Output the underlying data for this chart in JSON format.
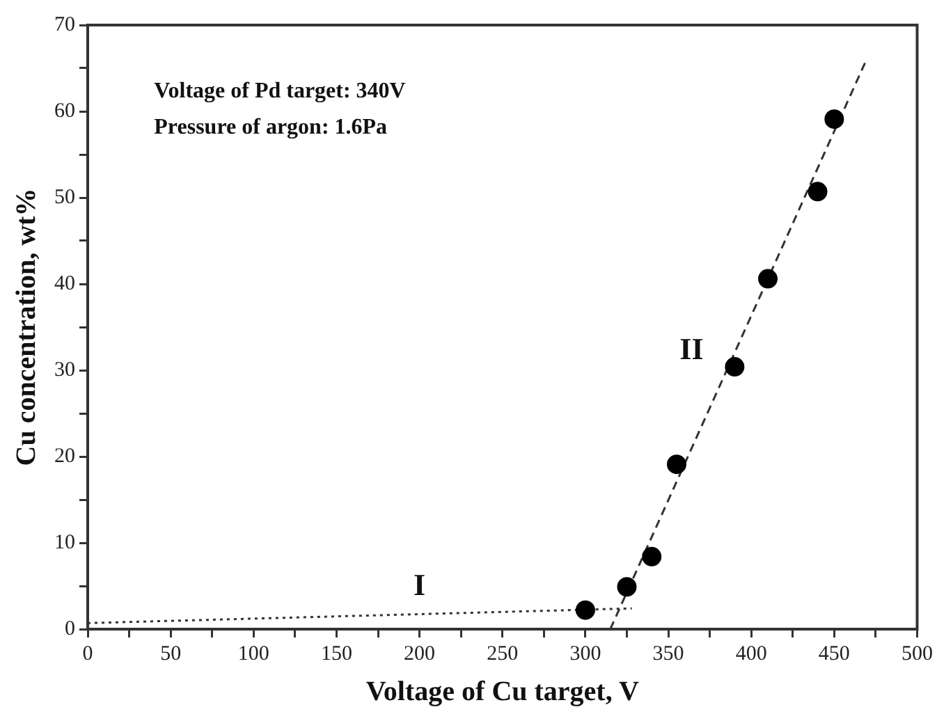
{
  "chart_data": {
    "type": "scatter",
    "xlabel": "Voltage of Cu target, V",
    "ylabel": "Cu concentration, wt%",
    "xlim": [
      0,
      500
    ],
    "ylim": [
      0,
      70
    ],
    "xticks": [
      0,
      {
        "value": 25,
        "label": null
      },
      50,
      {
        "value": 75,
        "label": null
      },
      100,
      {
        "value": 125,
        "label": null
      },
      150,
      {
        "value": 175,
        "label": null
      },
      200,
      {
        "value": 225,
        "label": null
      },
      250,
      {
        "value": 275,
        "label": null
      },
      300,
      {
        "value": 325,
        "label": null
      },
      350,
      {
        "value": 375,
        "label": null
      },
      400,
      {
        "value": 425,
        "label": null
      },
      450,
      {
        "value": 475,
        "label": null
      },
      500
    ],
    "yticks": [
      0,
      {
        "value": 5,
        "label": null
      },
      10,
      {
        "value": 15,
        "label": null
      },
      20,
      {
        "value": 25,
        "label": null
      },
      30,
      {
        "value": 35,
        "label": null
      },
      40,
      {
        "value": 45,
        "label": null
      },
      50,
      {
        "value": 55,
        "label": null
      },
      60,
      {
        "value": 65,
        "label": null
      },
      70
    ],
    "grid": false,
    "legend": false,
    "series": [
      {
        "type": "scatter",
        "color": "#000000",
        "marker": "circle",
        "x": [
          300,
          325,
          340,
          355,
          390,
          410,
          440,
          450
        ],
        "values": [
          2.2,
          4.9,
          8.4,
          19.1,
          30.4,
          40.6,
          50.7,
          59.1
        ]
      },
      {
        "type": "line",
        "color": "#333333",
        "marker": "none",
        "line_style": "dotted",
        "x": [
          0,
          328
        ],
        "values": [
          0.7,
          2.4
        ]
      },
      {
        "type": "line",
        "color": "#333333",
        "marker": "none",
        "line_style": "dashed",
        "x": [
          315,
          469
        ],
        "values": [
          0,
          65.8
        ]
      }
    ],
    "annotations": [
      "Voltage of Pd target: 340V",
      "Pressure of argon: 1.6Pa",
      "I",
      "II"
    ]
  }
}
